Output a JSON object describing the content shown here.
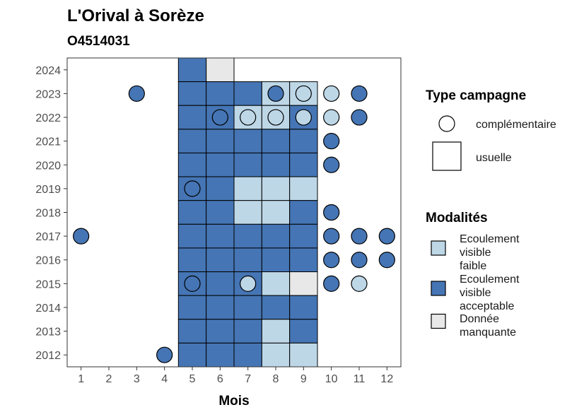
{
  "chart_data": {
    "type": "heatmap",
    "title": "L'Orival à Sorèze",
    "subtitle": "O4514031",
    "xlabel": "Mois",
    "ylabel": "",
    "x_ticks": [
      1,
      2,
      3,
      4,
      5,
      6,
      7,
      8,
      9,
      10,
      11,
      12
    ],
    "y_ticks": [
      2012,
      2013,
      2014,
      2015,
      2016,
      2017,
      2018,
      2019,
      2020,
      2021,
      2022,
      2023,
      2024
    ],
    "colors": {
      "faible": "#bdd7e7",
      "acceptable": "#4575b4",
      "manquante": "#e8e8e8",
      "outline": "#000000"
    },
    "legend_type": {
      "title": "Type campagne",
      "items": [
        {
          "key": "complementaire",
          "label": "complémentaire"
        },
        {
          "key": "usuelle",
          "label": "usuelle"
        }
      ]
    },
    "legend_modalites": {
      "title": "Modalités",
      "items": [
        {
          "key": "faible",
          "lines": [
            "Ecoulement",
            "visible",
            "faible"
          ]
        },
        {
          "key": "acceptable",
          "lines": [
            "Ecoulement",
            "visible",
            "acceptable"
          ]
        },
        {
          "key": "manquante",
          "lines": [
            "Donnée",
            "manquante"
          ]
        }
      ]
    },
    "usuelle": [
      {
        "year": 2024,
        "months": {
          "5": "acceptable",
          "6": "manquante"
        }
      },
      {
        "year": 2023,
        "months": {
          "5": "acceptable",
          "6": "acceptable",
          "7": "acceptable",
          "8": "faible",
          "9": "faible"
        }
      },
      {
        "year": 2022,
        "months": {
          "5": "acceptable",
          "6": "acceptable",
          "7": "faible",
          "8": "faible",
          "9": "acceptable"
        }
      },
      {
        "year": 2021,
        "months": {
          "5": "acceptable",
          "6": "acceptable",
          "7": "acceptable",
          "8": "acceptable",
          "9": "acceptable"
        }
      },
      {
        "year": 2020,
        "months": {
          "5": "acceptable",
          "6": "acceptable",
          "7": "acceptable",
          "8": "acceptable",
          "9": "acceptable"
        }
      },
      {
        "year": 2019,
        "months": {
          "5": "acceptable",
          "6": "acceptable",
          "7": "faible",
          "8": "faible",
          "9": "faible"
        }
      },
      {
        "year": 2018,
        "months": {
          "5": "acceptable",
          "6": "acceptable",
          "7": "faible",
          "8": "faible",
          "9": "acceptable"
        }
      },
      {
        "year": 2017,
        "months": {
          "5": "acceptable",
          "6": "acceptable",
          "7": "acceptable",
          "8": "acceptable",
          "9": "acceptable"
        }
      },
      {
        "year": 2016,
        "months": {
          "5": "acceptable",
          "6": "acceptable",
          "7": "acceptable",
          "8": "acceptable",
          "9": "acceptable"
        }
      },
      {
        "year": 2015,
        "months": {
          "5": "acceptable",
          "6": "acceptable",
          "7": "acceptable",
          "8": "faible",
          "9": "manquante"
        }
      },
      {
        "year": 2014,
        "months": {
          "5": "acceptable",
          "6": "acceptable",
          "7": "acceptable",
          "8": "acceptable",
          "9": "acceptable"
        }
      },
      {
        "year": 2013,
        "months": {
          "5": "acceptable",
          "6": "acceptable",
          "7": "acceptable",
          "8": "faible",
          "9": "acceptable"
        }
      },
      {
        "year": 2012,
        "months": {
          "5": "acceptable",
          "6": "acceptable",
          "7": "acceptable",
          "8": "faible",
          "9": "faible"
        }
      }
    ],
    "complementaire": [
      {
        "year": 2023,
        "month": 3,
        "value": "acceptable"
      },
      {
        "year": 2023,
        "month": 8,
        "value": "acceptable"
      },
      {
        "year": 2023,
        "month": 9,
        "value": "faible"
      },
      {
        "year": 2023,
        "month": 10,
        "value": "faible"
      },
      {
        "year": 2023,
        "month": 11,
        "value": "acceptable"
      },
      {
        "year": 2022,
        "month": 6,
        "value": "acceptable"
      },
      {
        "year": 2022,
        "month": 7,
        "value": "faible"
      },
      {
        "year": 2022,
        "month": 8,
        "value": "faible"
      },
      {
        "year": 2022,
        "month": 9,
        "value": "faible"
      },
      {
        "year": 2022,
        "month": 10,
        "value": "faible"
      },
      {
        "year": 2022,
        "month": 11,
        "value": "acceptable"
      },
      {
        "year": 2021,
        "month": 10,
        "value": "acceptable"
      },
      {
        "year": 2020,
        "month": 10,
        "value": "acceptable"
      },
      {
        "year": 2019,
        "month": 5,
        "value": "acceptable"
      },
      {
        "year": 2018,
        "month": 10,
        "value": "acceptable"
      },
      {
        "year": 2017,
        "month": 1,
        "value": "acceptable"
      },
      {
        "year": 2017,
        "month": 10,
        "value": "acceptable"
      },
      {
        "year": 2017,
        "month": 11,
        "value": "acceptable"
      },
      {
        "year": 2017,
        "month": 12,
        "value": "acceptable"
      },
      {
        "year": 2016,
        "month": 10,
        "value": "acceptable"
      },
      {
        "year": 2016,
        "month": 11,
        "value": "acceptable"
      },
      {
        "year": 2016,
        "month": 12,
        "value": "acceptable"
      },
      {
        "year": 2015,
        "month": 5,
        "value": "acceptable"
      },
      {
        "year": 2015,
        "month": 7,
        "value": "faible"
      },
      {
        "year": 2015,
        "month": 10,
        "value": "acceptable"
      },
      {
        "year": 2015,
        "month": 11,
        "value": "faible"
      },
      {
        "year": 2012,
        "month": 4,
        "value": "acceptable"
      }
    ]
  }
}
